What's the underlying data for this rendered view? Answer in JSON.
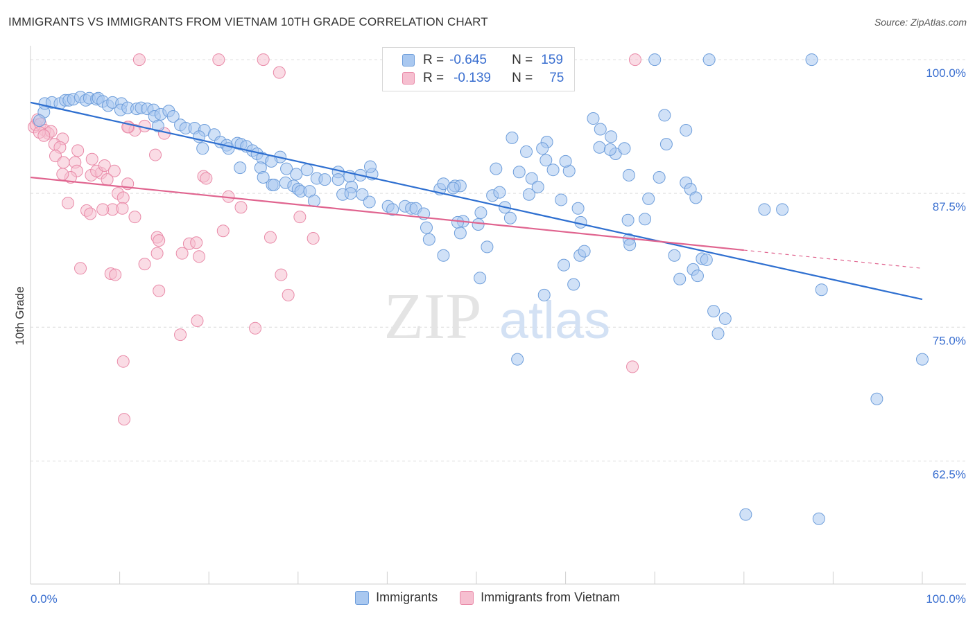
{
  "title": "IMMIGRANTS VS IMMIGRANTS FROM VIETNAM 10TH GRADE CORRELATION CHART",
  "source": "Source: ZipAtlas.com",
  "watermark": {
    "zip": "ZIP",
    "atlas": "atlas"
  },
  "colors": {
    "blue_fill": "#a9c8f0",
    "blue_stroke": "#6e9edb",
    "blue_line": "#2e6fd0",
    "pink_fill": "#f6bfd0",
    "pink_stroke": "#e98aa8",
    "pink_line": "#e0648f",
    "value_text": "#3a6fd0",
    "grid": "#dcdcdc"
  },
  "stats": [
    {
      "r_label": "R =",
      "r_value": "-0.645",
      "n_label": "N =",
      "n_value": "159"
    },
    {
      "r_label": "R =",
      "r_value": "-0.139",
      "n_label": "N =",
      "n_value": "75"
    }
  ],
  "chart_data": {
    "type": "scatter",
    "ylabel": "10th Grade",
    "xlabel": "",
    "xlim": [
      0,
      100
    ],
    "ylim": [
      51,
      101.3
    ],
    "x_tick_labels": [
      {
        "value": 0,
        "label": "0.0%"
      },
      {
        "value": 100,
        "label": "100.0%"
      }
    ],
    "y_tick_labels": [
      {
        "value": 100,
        "label": "100.0%"
      },
      {
        "value": 87.5,
        "label": "87.5%"
      },
      {
        "value": 75,
        "label": "75.0%"
      },
      {
        "value": 62.5,
        "label": "62.5%"
      }
    ],
    "grid": "horizontal dashed",
    "legend_position": "bottom-center",
    "series": [
      {
        "name": "Immigrants",
        "trend": {
          "x": [
            0,
            100
          ],
          "y": [
            96.0,
            77.6
          ]
        },
        "points": [
          [
            1.5,
            95.1
          ],
          [
            1.0,
            94.3
          ],
          [
            1.6,
            95.9
          ],
          [
            2.4,
            96.0
          ],
          [
            3.3,
            95.9
          ],
          [
            3.9,
            96.2
          ],
          [
            4.3,
            96.2
          ],
          [
            4.8,
            96.3
          ],
          [
            5.6,
            96.5
          ],
          [
            6.2,
            96.2
          ],
          [
            6.6,
            96.4
          ],
          [
            7.4,
            96.3
          ],
          [
            7.6,
            96.4
          ],
          [
            8.1,
            96.1
          ],
          [
            8.7,
            95.7
          ],
          [
            9.2,
            96.0
          ],
          [
            10.2,
            95.9
          ],
          [
            10.1,
            95.3
          ],
          [
            10.9,
            95.5
          ],
          [
            11.9,
            95.4
          ],
          [
            12.4,
            95.5
          ],
          [
            13.1,
            95.4
          ],
          [
            13.8,
            95.3
          ],
          [
            13.9,
            94.7
          ],
          [
            14.6,
            94.9
          ],
          [
            15.5,
            95.2
          ],
          [
            16.0,
            94.7
          ],
          [
            16.8,
            93.9
          ],
          [
            14.3,
            93.8
          ],
          [
            17.4,
            93.6
          ],
          [
            18.4,
            93.6
          ],
          [
            19.5,
            93.4
          ],
          [
            18.9,
            92.8
          ],
          [
            20.6,
            93.0
          ],
          [
            19.3,
            91.7
          ],
          [
            21.3,
            92.3
          ],
          [
            22.0,
            92.0
          ],
          [
            22.2,
            91.7
          ],
          [
            23.2,
            92.2
          ],
          [
            23.6,
            92.1
          ],
          [
            24.2,
            91.9
          ],
          [
            24.9,
            91.5
          ],
          [
            25.4,
            91.2
          ],
          [
            26.0,
            90.8
          ],
          [
            28.0,
            90.9
          ],
          [
            27.0,
            90.5
          ],
          [
            23.5,
            89.9
          ],
          [
            25.8,
            89.9
          ],
          [
            26.1,
            89.0
          ],
          [
            28.7,
            89.8
          ],
          [
            31.0,
            89.7
          ],
          [
            29.8,
            89.3
          ],
          [
            27.1,
            88.3
          ],
          [
            27.3,
            88.3
          ],
          [
            28.6,
            88.5
          ],
          [
            29.5,
            88.2
          ],
          [
            30.0,
            87.9
          ],
          [
            30.3,
            87.7
          ],
          [
            31.3,
            87.7
          ],
          [
            32.1,
            88.9
          ],
          [
            33.0,
            88.8
          ],
          [
            34.5,
            89.5
          ],
          [
            34.5,
            88.8
          ],
          [
            35.8,
            89.1
          ],
          [
            37.0,
            89.2
          ],
          [
            38.3,
            89.3
          ],
          [
            38.1,
            90.0
          ],
          [
            36.0,
            88.1
          ],
          [
            35.0,
            87.4
          ],
          [
            35.9,
            87.5
          ],
          [
            37.2,
            87.4
          ],
          [
            38.0,
            86.7
          ],
          [
            40.1,
            86.3
          ],
          [
            40.6,
            86.0
          ],
          [
            42.0,
            86.3
          ],
          [
            42.7,
            86.1
          ],
          [
            43.2,
            86.1
          ],
          [
            31.8,
            86.8
          ],
          [
            44.1,
            85.6
          ],
          [
            44.4,
            84.3
          ],
          [
            45.9,
            87.9
          ],
          [
            46.3,
            88.4
          ],
          [
            47.6,
            88.2
          ],
          [
            48.2,
            88.2
          ],
          [
            47.4,
            88.0
          ],
          [
            44.7,
            83.2
          ],
          [
            48.5,
            84.9
          ],
          [
            47.9,
            84.8
          ],
          [
            48.2,
            83.8
          ],
          [
            50.2,
            84.6
          ],
          [
            51.2,
            82.5
          ],
          [
            46.3,
            81.7
          ],
          [
            50.5,
            85.7
          ],
          [
            51.8,
            87.3
          ],
          [
            52.6,
            87.6
          ],
          [
            53.2,
            86.2
          ],
          [
            53.8,
            85.2
          ],
          [
            52.2,
            89.8
          ],
          [
            54.0,
            92.7
          ],
          [
            54.8,
            89.5
          ],
          [
            56.2,
            88.9
          ],
          [
            55.9,
            87.4
          ],
          [
            56.9,
            88.1
          ],
          [
            57.8,
            90.6
          ],
          [
            57.9,
            92.3
          ],
          [
            58.6,
            89.7
          ],
          [
            60.4,
            89.6
          ],
          [
            60.0,
            90.5
          ],
          [
            59.5,
            86.9
          ],
          [
            57.4,
            91.7
          ],
          [
            55.6,
            91.4
          ],
          [
            61.4,
            86.1
          ],
          [
            61.7,
            84.8
          ],
          [
            61.6,
            81.7
          ],
          [
            62.1,
            82.1
          ],
          [
            59.8,
            80.8
          ],
          [
            60.9,
            79.0
          ],
          [
            57.6,
            78.0
          ],
          [
            50.4,
            79.6
          ],
          [
            54.6,
            72.0
          ],
          [
            63.8,
            91.8
          ],
          [
            63.9,
            93.5
          ],
          [
            63.1,
            94.5
          ],
          [
            65.1,
            92.8
          ],
          [
            65.6,
            91.2
          ],
          [
            65.0,
            91.6
          ],
          [
            66.6,
            91.7
          ],
          [
            67.1,
            89.2
          ],
          [
            67.1,
            83.2
          ],
          [
            67.2,
            82.7
          ],
          [
            67.0,
            85.0
          ],
          [
            68.9,
            85.1
          ],
          [
            69.3,
            87.0
          ],
          [
            70.5,
            89.0
          ],
          [
            71.3,
            92.1
          ],
          [
            73.5,
            88.5
          ],
          [
            74.0,
            87.9
          ],
          [
            74.6,
            87.1
          ],
          [
            71.1,
            94.8
          ],
          [
            73.5,
            93.4
          ],
          [
            70.0,
            100.0
          ],
          [
            76.1,
            100.0
          ],
          [
            87.6,
            100.0
          ],
          [
            72.2,
            81.7
          ],
          [
            74.3,
            80.4
          ],
          [
            75.3,
            81.4
          ],
          [
            75.8,
            81.3
          ],
          [
            74.8,
            79.8
          ],
          [
            72.8,
            79.5
          ],
          [
            76.6,
            76.5
          ],
          [
            77.9,
            75.8
          ],
          [
            77.1,
            74.4
          ],
          [
            82.3,
            86.0
          ],
          [
            84.3,
            86.0
          ],
          [
            88.7,
            78.5
          ],
          [
            94.9,
            68.3
          ],
          [
            100.0,
            72.0
          ],
          [
            80.2,
            57.5
          ],
          [
            88.4,
            57.1
          ]
        ]
      },
      {
        "name": "Immigrants from Vietnam",
        "trend": {
          "x": [
            0,
            100
          ],
          "y": [
            89.0,
            80.5
          ],
          "solid_until_x": 80
        },
        "points": [
          [
            0.4,
            93.7
          ],
          [
            0.6,
            93.9
          ],
          [
            0.8,
            94.4
          ],
          [
            1.1,
            94.0
          ],
          [
            1.6,
            93.4
          ],
          [
            2.0,
            93.1
          ],
          [
            2.3,
            93.3
          ],
          [
            1.0,
            93.2
          ],
          [
            1.5,
            92.9
          ],
          [
            3.6,
            92.6
          ],
          [
            2.7,
            92.1
          ],
          [
            3.3,
            91.8
          ],
          [
            2.8,
            91.0
          ],
          [
            5.3,
            91.5
          ],
          [
            6.9,
            90.7
          ],
          [
            5.0,
            90.4
          ],
          [
            5.2,
            89.6
          ],
          [
            6.8,
            89.2
          ],
          [
            4.5,
            89.0
          ],
          [
            3.6,
            89.3
          ],
          [
            7.9,
            89.4
          ],
          [
            7.4,
            89.6
          ],
          [
            8.3,
            90.1
          ],
          [
            9.4,
            89.6
          ],
          [
            10.9,
            88.4
          ],
          [
            8.6,
            88.8
          ],
          [
            9.8,
            87.5
          ],
          [
            10.4,
            87.1
          ],
          [
            4.2,
            86.6
          ],
          [
            6.3,
            85.9
          ],
          [
            6.7,
            85.6
          ],
          [
            9.2,
            86.0
          ],
          [
            10.3,
            86.1
          ],
          [
            11.7,
            85.3
          ],
          [
            11.0,
            93.7
          ],
          [
            11.7,
            93.4
          ],
          [
            10.9,
            93.7
          ],
          [
            12.8,
            93.8
          ],
          [
            15.0,
            93.1
          ],
          [
            14.0,
            91.1
          ],
          [
            19.4,
            89.1
          ],
          [
            19.7,
            88.9
          ],
          [
            22.2,
            87.2
          ],
          [
            23.6,
            86.2
          ],
          [
            21.6,
            84.0
          ],
          [
            26.9,
            83.4
          ],
          [
            30.2,
            85.3
          ],
          [
            31.7,
            83.3
          ],
          [
            14.2,
            83.4
          ],
          [
            14.4,
            83.1
          ],
          [
            14.2,
            81.9
          ],
          [
            17.0,
            81.9
          ],
          [
            17.8,
            82.8
          ],
          [
            18.6,
            82.9
          ],
          [
            18.9,
            81.6
          ],
          [
            12.8,
            80.9
          ],
          [
            9.0,
            80.0
          ],
          [
            9.5,
            79.9
          ],
          [
            14.4,
            78.4
          ],
          [
            28.1,
            79.9
          ],
          [
            28.9,
            78.0
          ],
          [
            18.7,
            75.6
          ],
          [
            16.8,
            74.3
          ],
          [
            25.2,
            74.9
          ],
          [
            5.6,
            80.5
          ],
          [
            10.4,
            71.8
          ],
          [
            10.5,
            66.4
          ],
          [
            12.2,
            100.0
          ],
          [
            21.1,
            100.0
          ],
          [
            26.1,
            100.0
          ],
          [
            27.9,
            98.8
          ],
          [
            67.5,
            71.3
          ],
          [
            67.8,
            100.0
          ],
          [
            8.1,
            86.0
          ],
          [
            3.7,
            90.4
          ]
        ]
      }
    ]
  }
}
